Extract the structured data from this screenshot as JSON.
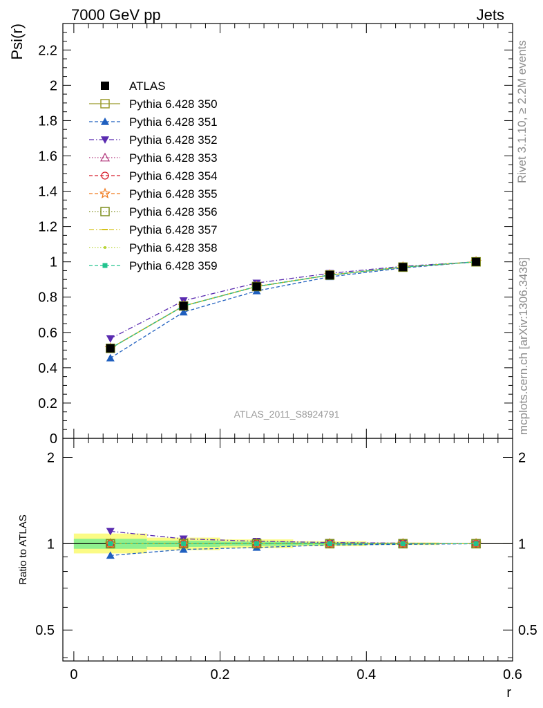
{
  "header": {
    "left": "7000 GeV pp",
    "right": "Jets"
  },
  "side_labels": {
    "top": "Rivet 3.1.10, ≥ 2.2M events",
    "bottom": "mcplots.cern.ch [arXiv:1306.3436]"
  },
  "watermark": "ATLAS_2011_S8924791",
  "chart_data": [
    {
      "type": "line",
      "panel": "main",
      "ylabel": "Psi(r)",
      "xlim": [
        -0.015,
        0.6
      ],
      "ylim": [
        0,
        2.35
      ],
      "x_ticks": [
        "0",
        "0.2",
        "0.4",
        "0.6"
      ],
      "y_ticks": [
        "0",
        "0.2",
        "0.4",
        "0.6",
        "0.8",
        "1",
        "1.2",
        "1.4",
        "1.6",
        "1.8",
        "2",
        "2.2"
      ],
      "x": [
        0.05,
        0.15,
        0.25,
        0.35,
        0.45,
        0.55
      ],
      "legend_position": "top-left",
      "series": [
        {
          "name": "ATLAS",
          "values": [
            0.51,
            0.75,
            0.86,
            0.925,
            0.97,
            1.0
          ],
          "color": "#000000",
          "marker": "square-filled",
          "line": "none"
        },
        {
          "name": "Pythia 6.428 350",
          "values": [
            0.51,
            0.75,
            0.86,
            0.925,
            0.97,
            1.0
          ],
          "color": "#9b9b2b",
          "marker": "square-open",
          "line": "solid"
        },
        {
          "name": "Pythia 6.428 351",
          "values": [
            0.455,
            0.715,
            0.835,
            0.915,
            0.965,
            1.0
          ],
          "color": "#1f5fbf",
          "marker": "triangle-up-filled",
          "line": "dashed"
        },
        {
          "name": "Pythia 6.428 352",
          "values": [
            0.565,
            0.78,
            0.88,
            0.935,
            0.975,
            1.0
          ],
          "color": "#5a2bb0",
          "marker": "triangle-down-filled",
          "line": "dashdot"
        },
        {
          "name": "Pythia 6.428 353",
          "values": [
            0.51,
            0.75,
            0.86,
            0.925,
            0.97,
            1.0
          ],
          "color": "#b0337a",
          "marker": "triangle-up-open",
          "line": "dotted"
        },
        {
          "name": "Pythia 6.428 354",
          "values": [
            0.51,
            0.75,
            0.86,
            0.925,
            0.97,
            1.0
          ],
          "color": "#d81e2c",
          "marker": "circle-open",
          "line": "dashed"
        },
        {
          "name": "Pythia 6.428 355",
          "values": [
            0.51,
            0.75,
            0.86,
            0.925,
            0.97,
            1.0
          ],
          "color": "#f07a1e",
          "marker": "star-open",
          "line": "dashed"
        },
        {
          "name": "Pythia 6.428 356",
          "values": [
            0.51,
            0.75,
            0.86,
            0.925,
            0.97,
            1.0
          ],
          "color": "#7f8f1f",
          "marker": "square-open",
          "line": "dotted"
        },
        {
          "name": "Pythia 6.428 357",
          "values": [
            0.51,
            0.75,
            0.86,
            0.925,
            0.97,
            1.0
          ],
          "color": "#d4c21a",
          "marker": "dash",
          "line": "dashdot"
        },
        {
          "name": "Pythia 6.428 358",
          "values": [
            0.51,
            0.75,
            0.86,
            0.925,
            0.97,
            1.0
          ],
          "color": "#b8d435",
          "marker": "dot",
          "line": "dotted"
        },
        {
          "name": "Pythia 6.428 359",
          "values": [
            0.51,
            0.75,
            0.86,
            0.925,
            0.97,
            1.0
          ],
          "color": "#21c38e",
          "marker": "square-small-filled",
          "line": "dashed"
        }
      ]
    },
    {
      "type": "line",
      "panel": "ratio",
      "ylabel": "Ratio to ATLAS",
      "xlabel": "r",
      "scale": "log",
      "xlim": [
        -0.015,
        0.6
      ],
      "ylim": [
        0.39,
        2.33
      ],
      "x_ticks": [
        "0",
        "0.2",
        "0.4",
        "0.6"
      ],
      "y_ticks": [
        "0.5",
        "1",
        "2"
      ],
      "x": [
        0.05,
        0.15,
        0.25,
        0.35,
        0.45,
        0.55
      ],
      "bands": {
        "x_edges": [
          0.0,
          0.1,
          0.2,
          0.3,
          0.4,
          0.5,
          0.6
        ],
        "yellow_lo": [
          0.925,
          0.95,
          0.965,
          0.98,
          0.99,
          0.997
        ],
        "yellow_hi": [
          1.085,
          1.05,
          1.035,
          1.02,
          1.01,
          1.003
        ],
        "green_lo": [
          0.96,
          0.975,
          0.983,
          0.99,
          0.995,
          0.999
        ],
        "green_hi": [
          1.04,
          1.025,
          1.017,
          1.01,
          1.005,
          1.001
        ]
      },
      "series": [
        {
          "name": "Pythia 6.428 350",
          "values": [
            1.0,
            1.0,
            1.0,
            1.0,
            1.0,
            1.0
          ]
        },
        {
          "name": "Pythia 6.428 351",
          "values": [
            0.91,
            0.955,
            0.97,
            0.99,
            0.995,
            1.0
          ]
        },
        {
          "name": "Pythia 6.428 352",
          "values": [
            1.105,
            1.04,
            1.02,
            1.01,
            1.005,
            1.0
          ]
        },
        {
          "name": "Pythia 6.428 353",
          "values": [
            1.0,
            1.0,
            1.0,
            1.0,
            1.0,
            1.0
          ]
        },
        {
          "name": "Pythia 6.428 354",
          "values": [
            1.0,
            1.0,
            1.0,
            1.0,
            1.0,
            1.0
          ]
        },
        {
          "name": "Pythia 6.428 355",
          "values": [
            1.0,
            1.0,
            1.0,
            1.0,
            1.0,
            1.0
          ]
        },
        {
          "name": "Pythia 6.428 356",
          "values": [
            1.0,
            1.0,
            1.0,
            1.0,
            1.0,
            1.0
          ]
        },
        {
          "name": "Pythia 6.428 357",
          "values": [
            1.0,
            1.0,
            1.0,
            1.0,
            1.0,
            1.0
          ]
        },
        {
          "name": "Pythia 6.428 358",
          "values": [
            1.0,
            1.0,
            1.0,
            1.0,
            1.0,
            1.0
          ]
        },
        {
          "name": "Pythia 6.428 359",
          "values": [
            1.0,
            1.0,
            1.0,
            1.0,
            1.0,
            1.0
          ]
        }
      ]
    }
  ]
}
